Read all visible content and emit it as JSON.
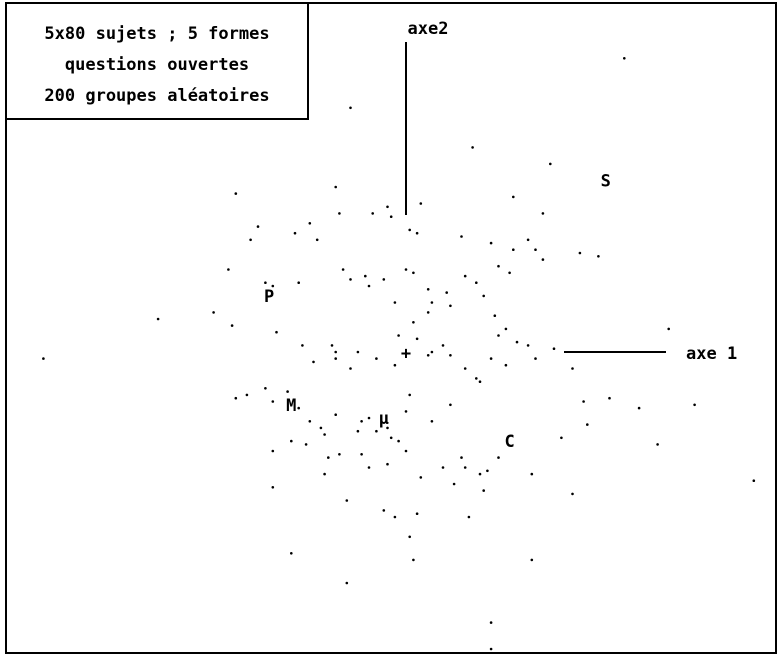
{
  "chart_data": {
    "type": "scatter",
    "legend_lines": [
      "5x80 sujets ; 5 formes",
      "questions ouvertes",
      "200 groupes aléatoires"
    ],
    "legend_placement": "top-left",
    "axis1_label": "axe 1",
    "axis2_label": "axe2",
    "origin_marker": "+",
    "xlim": [
      -1.0,
      1.0
    ],
    "ylim": [
      -1.0,
      1.0
    ],
    "grid": false,
    "group_labels": [
      {
        "name": "S",
        "x": 0.54,
        "y": 0.52
      },
      {
        "name": "P",
        "x": -0.37,
        "y": 0.17
      },
      {
        "name": "M",
        "x": -0.31,
        "y": -0.16
      },
      {
        "name": "µ",
        "x": -0.06,
        "y": -0.2
      },
      {
        "name": "C",
        "x": 0.28,
        "y": -0.27
      }
    ],
    "points": [
      [
        -0.15,
        0.74
      ],
      [
        0.18,
        0.62
      ],
      [
        0.39,
        0.57
      ],
      [
        0.59,
        0.89
      ],
      [
        -0.46,
        0.48
      ],
      [
        -0.19,
        0.5
      ],
      [
        -0.05,
        0.44
      ],
      [
        0.04,
        0.45
      ],
      [
        0.29,
        0.47
      ],
      [
        0.37,
        0.42
      ],
      [
        -0.4,
        0.38
      ],
      [
        -0.42,
        0.34
      ],
      [
        -0.3,
        0.36
      ],
      [
        -0.26,
        0.39
      ],
      [
        -0.24,
        0.34
      ],
      [
        -0.18,
        0.42
      ],
      [
        -0.09,
        0.42
      ],
      [
        -0.04,
        0.41
      ],
      [
        0.01,
        0.37
      ],
      [
        0.03,
        0.36
      ],
      [
        0.15,
        0.35
      ],
      [
        0.23,
        0.33
      ],
      [
        0.29,
        0.31
      ],
      [
        0.33,
        0.34
      ],
      [
        0.35,
        0.31
      ],
      [
        0.37,
        0.28
      ],
      [
        0.47,
        0.3
      ],
      [
        0.52,
        0.29
      ],
      [
        0.25,
        0.26
      ],
      [
        0.28,
        0.24
      ],
      [
        -0.48,
        0.25
      ],
      [
        -0.38,
        0.21
      ],
      [
        -0.36,
        0.2
      ],
      [
        -0.29,
        0.21
      ],
      [
        -0.17,
        0.25
      ],
      [
        -0.15,
        0.22
      ],
      [
        -0.11,
        0.23
      ],
      [
        -0.1,
        0.2
      ],
      [
        -0.06,
        0.22
      ],
      [
        0.0,
        0.25
      ],
      [
        0.02,
        0.24
      ],
      [
        0.06,
        0.19
      ],
      [
        0.07,
        0.15
      ],
      [
        0.06,
        0.12
      ],
      [
        0.02,
        0.09
      ],
      [
        -0.03,
        0.15
      ],
      [
        -0.02,
        0.05
      ],
      [
        0.03,
        0.04
      ],
      [
        0.11,
        0.18
      ],
      [
        0.12,
        0.14
      ],
      [
        0.16,
        0.23
      ],
      [
        0.19,
        0.21
      ],
      [
        0.21,
        0.17
      ],
      [
        0.24,
        0.11
      ],
      [
        0.27,
        0.07
      ],
      [
        0.3,
        0.03
      ],
      [
        0.33,
        0.02
      ],
      [
        0.35,
        -0.02
      ],
      [
        -0.67,
        0.1
      ],
      [
        -0.52,
        0.12
      ],
      [
        -0.47,
        0.08
      ],
      [
        -0.35,
        0.06
      ],
      [
        -0.28,
        0.02
      ],
      [
        -0.25,
        -0.03
      ],
      [
        -0.19,
        -0.02
      ],
      [
        -0.19,
        0.0
      ],
      [
        -0.2,
        0.02
      ],
      [
        -0.15,
        -0.05
      ],
      [
        -0.13,
        0.0
      ],
      [
        -0.08,
        -0.02
      ],
      [
        -0.03,
        -0.04
      ],
      [
        0.06,
        -0.01
      ],
      [
        0.07,
        0.0
      ],
      [
        0.1,
        0.02
      ],
      [
        0.12,
        -0.01
      ],
      [
        0.16,
        -0.05
      ],
      [
        0.19,
        -0.08
      ],
      [
        0.2,
        -0.09
      ],
      [
        0.23,
        -0.02
      ],
      [
        0.25,
        0.05
      ],
      [
        0.27,
        -0.04
      ],
      [
        0.4,
        0.01
      ],
      [
        0.45,
        -0.05
      ],
      [
        0.48,
        -0.15
      ],
      [
        0.55,
        -0.14
      ],
      [
        0.63,
        -0.17
      ],
      [
        0.71,
        0.07
      ],
      [
        -0.98,
        -0.02
      ],
      [
        -0.46,
        -0.14
      ],
      [
        -0.43,
        -0.13
      ],
      [
        -0.38,
        -0.11
      ],
      [
        -0.36,
        -0.15
      ],
      [
        -0.32,
        -0.12
      ],
      [
        -0.29,
        -0.17
      ],
      [
        -0.26,
        -0.21
      ],
      [
        -0.23,
        -0.23
      ],
      [
        -0.22,
        -0.25
      ],
      [
        -0.19,
        -0.19
      ],
      [
        -0.13,
        -0.24
      ],
      [
        -0.12,
        -0.21
      ],
      [
        -0.1,
        -0.2
      ],
      [
        -0.08,
        -0.24
      ],
      [
        -0.05,
        -0.23
      ],
      [
        -0.04,
        -0.26
      ],
      [
        -0.02,
        -0.27
      ],
      [
        0.0,
        -0.18
      ],
      [
        0.01,
        -0.13
      ],
      [
        0.07,
        -0.21
      ],
      [
        0.12,
        -0.16
      ],
      [
        0.15,
        -0.32
      ],
      [
        0.16,
        -0.35
      ],
      [
        0.2,
        -0.37
      ],
      [
        0.22,
        -0.36
      ],
      [
        0.25,
        -0.32
      ],
      [
        0.42,
        -0.26
      ],
      [
        0.49,
        -0.22
      ],
      [
        0.68,
        -0.28
      ],
      [
        0.78,
        -0.16
      ],
      [
        -0.36,
        -0.3
      ],
      [
        -0.31,
        -0.27
      ],
      [
        -0.27,
        -0.28
      ],
      [
        -0.21,
        -0.32
      ],
      [
        -0.18,
        -0.31
      ],
      [
        -0.12,
        -0.31
      ],
      [
        -0.1,
        -0.35
      ],
      [
        -0.05,
        -0.34
      ],
      [
        0.0,
        -0.3
      ],
      [
        0.04,
        -0.38
      ],
      [
        0.1,
        -0.35
      ],
      [
        0.13,
        -0.4
      ],
      [
        0.21,
        -0.42
      ],
      [
        0.34,
        -0.37
      ],
      [
        0.45,
        -0.43
      ],
      [
        0.94,
        -0.39
      ],
      [
        -0.36,
        -0.41
      ],
      [
        -0.22,
        -0.37
      ],
      [
        -0.16,
        -0.45
      ],
      [
        -0.06,
        -0.48
      ],
      [
        -0.03,
        -0.5
      ],
      [
        0.03,
        -0.49
      ],
      [
        0.01,
        -0.56
      ],
      [
        0.17,
        -0.5
      ],
      [
        -0.31,
        -0.61
      ],
      [
        -0.16,
        -0.7
      ],
      [
        0.02,
        -0.63
      ],
      [
        0.34,
        -0.63
      ],
      [
        0.23,
        -0.82
      ],
      [
        0.23,
        -0.9
      ]
    ]
  }
}
